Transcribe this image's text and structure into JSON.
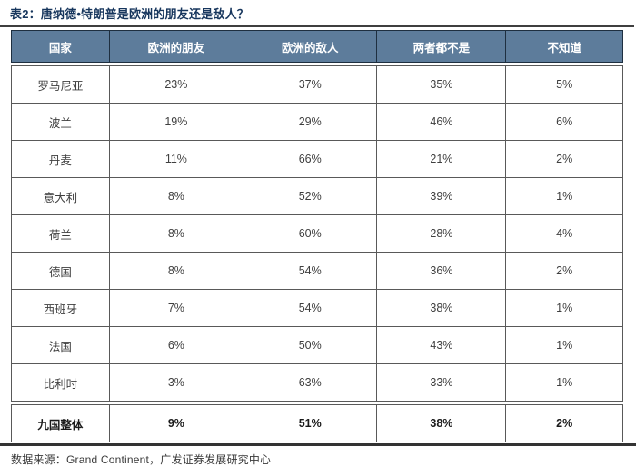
{
  "caption": "表2：唐纳德•特朗普是欧洲的朋友还是敌人？",
  "source_note": "数据来源：Grand Continent，广发证券发展研究中心",
  "colors": {
    "header_bg": "#5d7c9b",
    "header_text": "#ffffff",
    "header_border": "#1e2f40",
    "caption_text": "#17365d",
    "cell_border": "#595959",
    "cell_text": "#3f3f3f",
    "rule": "#3f3f3f"
  },
  "chart_data": {
    "type": "table",
    "title": "表2：唐纳德•特朗普是欧洲的朋友还是敌人？",
    "columns": [
      "国家",
      "欧洲的朋友",
      "欧洲的敌人",
      "两者都不是",
      "不知道"
    ],
    "rows": [
      [
        "罗马尼亚",
        "23%",
        "37%",
        "35%",
        "5%"
      ],
      [
        "波兰",
        "19%",
        "29%",
        "46%",
        "6%"
      ],
      [
        "丹麦",
        "11%",
        "66%",
        "21%",
        "2%"
      ],
      [
        "意大利",
        "8%",
        "52%",
        "39%",
        "1%"
      ],
      [
        "荷兰",
        "8%",
        "60%",
        "28%",
        "4%"
      ],
      [
        "德国",
        "8%",
        "54%",
        "36%",
        "2%"
      ],
      [
        "西班牙",
        "7%",
        "54%",
        "38%",
        "1%"
      ],
      [
        "法国",
        "6%",
        "50%",
        "43%",
        "1%"
      ],
      [
        "比利时",
        "3%",
        "63%",
        "33%",
        "1%"
      ],
      [
        "九国整体",
        "9%",
        "51%",
        "38%",
        "2%"
      ]
    ],
    "total_row_index": 9,
    "source": "数据来源：Grand Continent，广发证券发展研究中心"
  }
}
